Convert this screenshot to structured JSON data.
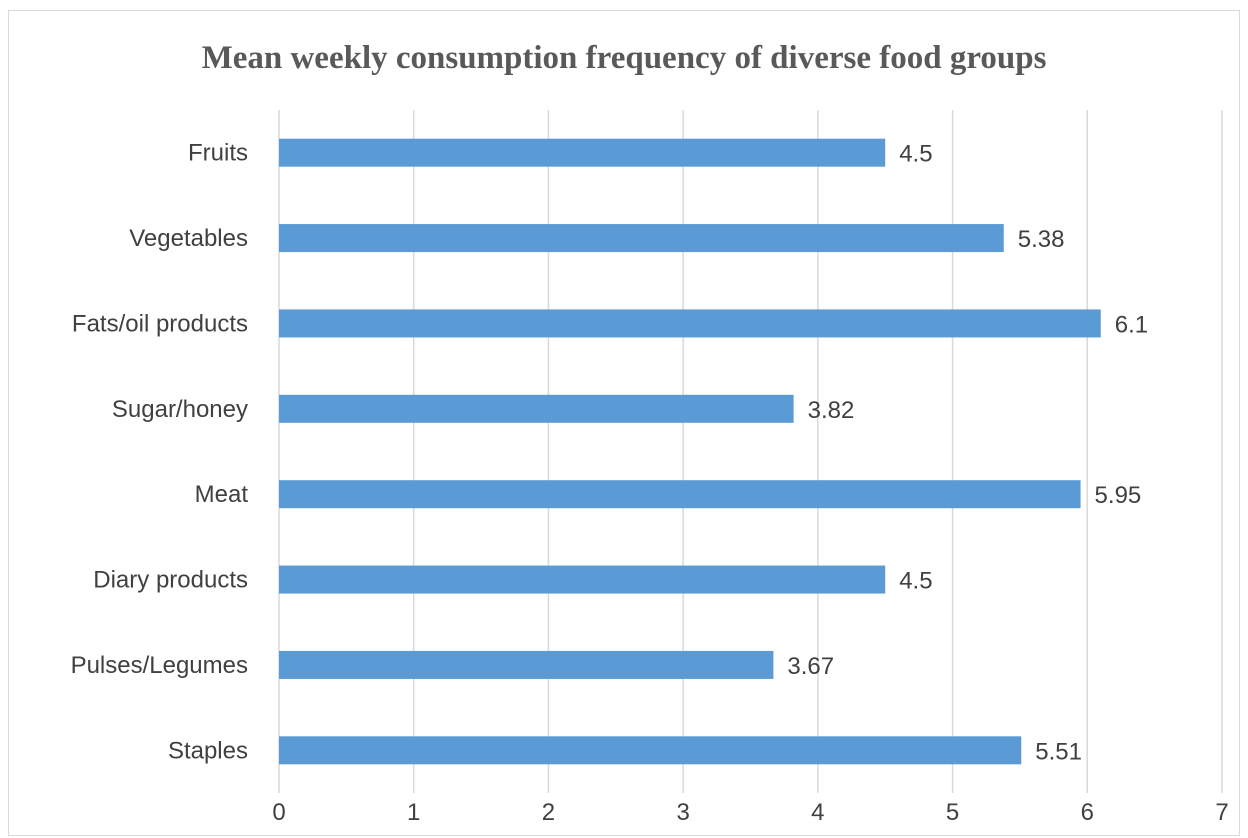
{
  "chart_data": {
    "type": "bar",
    "orientation": "horizontal",
    "title": "Mean weekly consumption frequency of diverse food groups",
    "categories": [
      "Fruits",
      "Vegetables",
      "Fats/oil products",
      "Sugar/honey",
      "Meat",
      "Diary products",
      "Pulses/Legumes",
      "Staples"
    ],
    "values": [
      4.5,
      5.38,
      6.1,
      3.82,
      5.95,
      4.5,
      3.67,
      5.51
    ],
    "value_labels": [
      "4.5",
      "5.38",
      "6.1",
      "3.82",
      "5.95",
      "4.5",
      "3.67",
      "5.51"
    ],
    "xlim": [
      0,
      7
    ],
    "x_ticks": [
      "0",
      "1",
      "2",
      "3",
      "4",
      "5",
      "6",
      "7"
    ],
    "grid": "vertical",
    "legend": "none",
    "bar_color": "#5b9bd5"
  }
}
